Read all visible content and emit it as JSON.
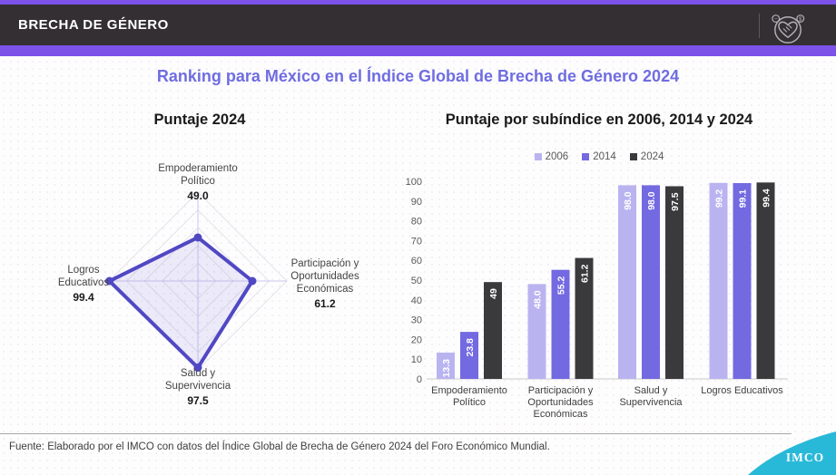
{
  "palette": {
    "accent_purple": "#7C52E8",
    "header_band": "#332F33",
    "title_purple": "#6F6DE0",
    "radar_stroke": "#5048C3",
    "radar_fill": "rgba(110,102,210,0.12)",
    "radar_axis_line": "#CBC5EC",
    "radar_grid": "#E4E3EA",
    "bar_2006": "#B9B4F0",
    "bar_2014": "#7369E1",
    "bar_2024": "#3A3A3C",
    "logo_cyan": "#29B9D8"
  },
  "header": {
    "title": "BRECHA DE GÉNERO",
    "icon_name": "handshake-heart-icon",
    "icon_badge_left": "−",
    "icon_badge_right": "$"
  },
  "page_title": "Ranking para México en el Índice Global de Brecha de Género 2024",
  "footer": {
    "source": "Fuente: Elaborado por el IMCO con datos del Índice Global de Brecha de Género 2024 del Foro Económico Mundial.",
    "logo_text": "IMCO"
  },
  "chart_data": [
    {
      "type": "radar",
      "title": "Puntaje 2024",
      "scale_max": 100,
      "grid_step": 20,
      "axes": [
        {
          "label": "Empoderamiento Político",
          "label_lines": [
            "Empoderamiento",
            "Político"
          ],
          "value": 49.0,
          "value_label": "49.0",
          "position": "top"
        },
        {
          "label": "Participación y Oportunidades Económicas",
          "label_lines": [
            "Participación y",
            "Oportunidades",
            "Económicas"
          ],
          "value": 61.2,
          "value_label": "61.2",
          "position": "right"
        },
        {
          "label": "Salud y Supervivencia",
          "label_lines": [
            "Salud y",
            "Supervivencia"
          ],
          "value": 97.5,
          "value_label": "97.5",
          "position": "bottom"
        },
        {
          "label": "Logros Educativos",
          "label_lines": [
            "Logros",
            "Educativos"
          ],
          "value": 99.4,
          "value_label": "99.4",
          "position": "left"
        }
      ]
    },
    {
      "type": "bar",
      "title": "Puntaje por subíndice en 2006, 2014 y 2024",
      "ylim": [
        0,
        100
      ],
      "ytick_step": 10,
      "grid": false,
      "legend_position": "top",
      "categories": [
        {
          "label": "Empoderamiento Político",
          "label_lines": [
            "Empoderamiento",
            "Político"
          ]
        },
        {
          "label": "Participación y Oportunidades Económicas",
          "label_lines": [
            "Participación y",
            "Oportunidades",
            "Económicas"
          ]
        },
        {
          "label": "Salud y Supervivencia",
          "label_lines": [
            "Salud y",
            "Supervivencia"
          ]
        },
        {
          "label": "Logros Educativos",
          "label_lines": [
            "Logros Educativos"
          ]
        }
      ],
      "series": [
        {
          "name": "2006",
          "color_key": "bar_2006",
          "values": [
            13.3,
            48.0,
            98.0,
            99.2
          ],
          "value_labels": [
            "13.3",
            "48.0",
            "98.0",
            "99.2"
          ]
        },
        {
          "name": "2014",
          "color_key": "bar_2014",
          "values": [
            23.8,
            55.2,
            98.0,
            99.1
          ],
          "value_labels": [
            "23.8",
            "55.2",
            "98.0",
            "99.1"
          ]
        },
        {
          "name": "2024",
          "color_key": "bar_2024",
          "values": [
            49,
            61.2,
            97.5,
            99.4
          ],
          "value_labels": [
            "49",
            "61.2",
            "97.5",
            "99.4"
          ]
        }
      ]
    }
  ]
}
